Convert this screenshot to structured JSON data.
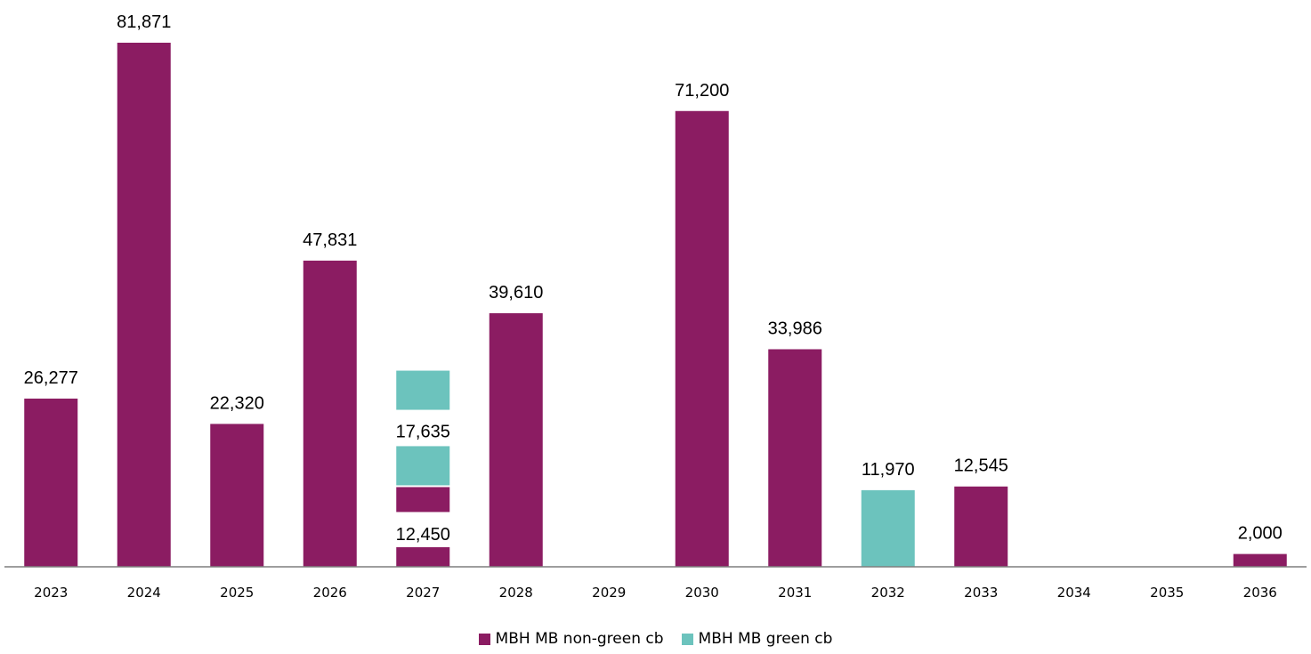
{
  "chart_data": {
    "type": "bar",
    "stacked": true,
    "categories": [
      "2023",
      "2024",
      "2025",
      "2026",
      "2027",
      "2028",
      "2029",
      "2030",
      "2031",
      "2032",
      "2033",
      "2034",
      "2035",
      "2036"
    ],
    "series": [
      {
        "name": "MBH MB non-green cb",
        "color": "#8B1C62",
        "values": [
          26277,
          81871,
          22320,
          47831,
          12450,
          39610,
          0,
          71200,
          33986,
          0,
          12545,
          0,
          0,
          2000
        ]
      },
      {
        "name": "MBH MB green cb",
        "color": "#6CC3BD",
        "values": [
          0,
          0,
          0,
          0,
          17635,
          0,
          0,
          0,
          0,
          11970,
          0,
          0,
          0,
          0
        ]
      }
    ],
    "data_labels": [
      "26,277",
      "81,871",
      "22,320",
      "47,831",
      "12,450",
      "39,610",
      "",
      "71,200",
      "33,986",
      "11,970",
      "12,545",
      "",
      "",
      "2,000"
    ],
    "data_label_green_2027": "17,635",
    "ylim": [
      0,
      85000
    ],
    "grid": false,
    "legend_position": "bottom",
    "title": "",
    "xlabel": "",
    "ylabel": ""
  }
}
